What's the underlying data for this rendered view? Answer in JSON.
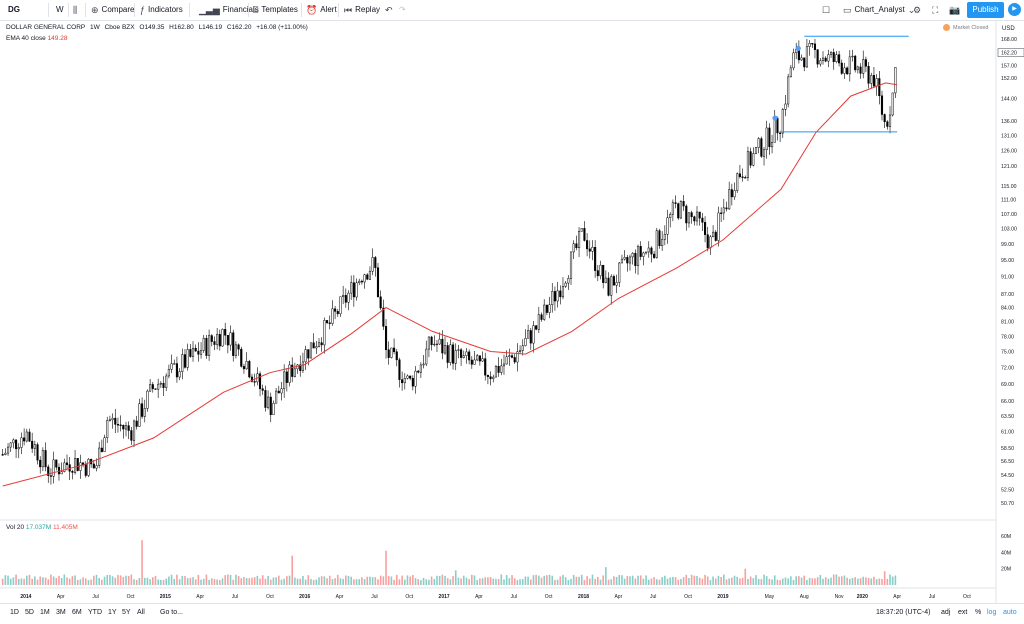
{
  "toolbar": {
    "symbol": "DG",
    "interval": "W",
    "compare": "Compare",
    "indicators": "Indicators",
    "financials": "Financials",
    "templates": "Templates",
    "alert": "Alert",
    "replay": "Replay",
    "layout_name": "Chart_Analyst",
    "publish": "Publish"
  },
  "legend": {
    "name": "DOLLAR GENERAL CORP",
    "interval": "1W",
    "exchange": "Cboe BZX",
    "open": "O149.35",
    "high": "H162.80",
    "low": "L146.19",
    "close": "C162.20",
    "change": "+16.08 (+11.00%)",
    "ema_label": "EMA 40 close",
    "ema_value": "149.28",
    "market_status": "Market Closed"
  },
  "volume": {
    "label": "Vol 20",
    "v1": "17.037M",
    "v2": "11.405M"
  },
  "bottom": {
    "ranges": [
      "1D",
      "5D",
      "1M",
      "3M",
      "6M",
      "YTD",
      "1Y",
      "5Y",
      "All"
    ],
    "goto": "Go to...",
    "time": "18:37:20 (UTC-4)",
    "adj": "adj",
    "ext": "ext",
    "pct": "%",
    "log": "log",
    "auto": "auto"
  },
  "colors": {
    "up": "#ffffff",
    "down": "#000000",
    "wick": "#000000",
    "ema": "#e53935",
    "lines": "#2196f3",
    "vol_up": "#26a69a",
    "vol_down": "#ef5350",
    "accent": "#2196f3"
  },
  "chart_data": {
    "type": "candlestick",
    "title": "DOLLAR GENERAL CORP · 1W · Cboe BZX",
    "scale": "log",
    "y_axis_label": "USD",
    "y_ticks": [
      168.0,
      162.2,
      157.0,
      152.0,
      144.0,
      136.0,
      131.0,
      126.0,
      121.0,
      115.0,
      111.0,
      107.0,
      103.0,
      99.0,
      95.0,
      91.0,
      87.0,
      84.0,
      81.0,
      78.0,
      75.0,
      72.0,
      69.0,
      66.0,
      63.5,
      61.0,
      58.5,
      56.5,
      54.5,
      52.5,
      50.7
    ],
    "y_ticks_display": [
      "168.00",
      "162.20",
      "157.00",
      "152.00",
      "144.00",
      "136.00",
      "131.00",
      "126.00",
      "121.00",
      "115.00",
      "111.00",
      "107.00",
      "103.00",
      "99.00",
      "95.00",
      "91.00",
      "87.00",
      "84.00",
      "81.00",
      "78.00",
      "75.00",
      "72.00",
      "69.00",
      "66.00",
      "63.50",
      "61.00",
      "58.50",
      "56.50",
      "54.50",
      "52.50",
      "50.70"
    ],
    "ylim": [
      48.8,
      176
    ],
    "x_ticks": [
      {
        "label": "2014",
        "date": "2014-01"
      },
      {
        "label": "Apr",
        "date": "2014-04"
      },
      {
        "label": "Jul",
        "date": "2014-07"
      },
      {
        "label": "Oct",
        "date": "2014-10"
      },
      {
        "label": "2015",
        "date": "2015-01"
      },
      {
        "label": "Apr",
        "date": "2015-04"
      },
      {
        "label": "Jul",
        "date": "2015-07"
      },
      {
        "label": "Oct",
        "date": "2015-10"
      },
      {
        "label": "2016",
        "date": "2016-01"
      },
      {
        "label": "Apr",
        "date": "2016-04"
      },
      {
        "label": "Jul",
        "date": "2016-07"
      },
      {
        "label": "Oct",
        "date": "2016-10"
      },
      {
        "label": "2017",
        "date": "2017-01"
      },
      {
        "label": "Apr",
        "date": "2017-04"
      },
      {
        "label": "Jul",
        "date": "2017-07"
      },
      {
        "label": "Oct",
        "date": "2017-10"
      },
      {
        "label": "2018",
        "date": "2018-01"
      },
      {
        "label": "Apr",
        "date": "2018-04"
      },
      {
        "label": "Jul",
        "date": "2018-07"
      },
      {
        "label": "Oct",
        "date": "2018-10"
      },
      {
        "label": "2019",
        "date": "2019-01"
      },
      {
        "label": "May",
        "date": "2019-05"
      },
      {
        "label": "Aug",
        "date": "2019-08"
      },
      {
        "label": "Nov",
        "date": "2019-11"
      },
      {
        "label": "2020",
        "date": "2020-01"
      },
      {
        "label": "Apr",
        "date": "2020-04"
      },
      {
        "label": "Jul",
        "date": "2020-07"
      },
      {
        "label": "Oct",
        "date": "2020-10"
      }
    ],
    "price_path": [
      {
        "date": "2013-11",
        "close": 57.5
      },
      {
        "date": "2014-01",
        "close": 61.0
      },
      {
        "date": "2014-03",
        "close": 55.0
      },
      {
        "date": "2014-05",
        "close": 56.5
      },
      {
        "date": "2014-07",
        "close": 55.5
      },
      {
        "date": "2014-08",
        "close": 63.0
      },
      {
        "date": "2014-10",
        "close": 61.0
      },
      {
        "date": "2014-12",
        "close": 68.5
      },
      {
        "date": "2015-03",
        "close": 73.5
      },
      {
        "date": "2015-06",
        "close": 79.0
      },
      {
        "date": "2015-08",
        "close": 73.0
      },
      {
        "date": "2015-10",
        "close": 65.0
      },
      {
        "date": "2015-12",
        "close": 72.0
      },
      {
        "date": "2016-03",
        "close": 80.0
      },
      {
        "date": "2016-06",
        "close": 92.0
      },
      {
        "date": "2016-07",
        "close": 94.0
      },
      {
        "date": "2016-08",
        "close": 75.0
      },
      {
        "date": "2016-10",
        "close": 69.0
      },
      {
        "date": "2016-12",
        "close": 77.0
      },
      {
        "date": "2017-02",
        "close": 74.0
      },
      {
        "date": "2017-05",
        "close": 71.0
      },
      {
        "date": "2017-07",
        "close": 74.0
      },
      {
        "date": "2017-09",
        "close": 80.0
      },
      {
        "date": "2017-11",
        "close": 89.0
      },
      {
        "date": "2018-01",
        "close": 102.0
      },
      {
        "date": "2018-03",
        "close": 88.0
      },
      {
        "date": "2018-05",
        "close": 95.0
      },
      {
        "date": "2018-07",
        "close": 98.0
      },
      {
        "date": "2018-09",
        "close": 109.0
      },
      {
        "date": "2018-11",
        "close": 104.0
      },
      {
        "date": "2018-12",
        "close": 99.0
      },
      {
        "date": "2019-02",
        "close": 117.0
      },
      {
        "date": "2019-04",
        "close": 126.0
      },
      {
        "date": "2019-06",
        "close": 136.0
      },
      {
        "date": "2019-07",
        "close": 160.0
      },
      {
        "date": "2019-09",
        "close": 162.0
      },
      {
        "date": "2019-11",
        "close": 158.0
      },
      {
        "date": "2020-01",
        "close": 155.0
      },
      {
        "date": "2020-02",
        "close": 152.0
      },
      {
        "date": "2020-03",
        "close": 134.0
      },
      {
        "date": "2020-03-20",
        "close": 146.0
      },
      {
        "date": "2020-04",
        "close": 162.2
      }
    ],
    "ema40_path": [
      {
        "date": "2013-11",
        "value": 53.0
      },
      {
        "date": "2014-06",
        "value": 56.0
      },
      {
        "date": "2014-12",
        "value": 60.0
      },
      {
        "date": "2015-06",
        "value": 67.5
      },
      {
        "date": "2015-10",
        "value": 71.0
      },
      {
        "date": "2016-01",
        "value": 72.5
      },
      {
        "date": "2016-05",
        "value": 78.5
      },
      {
        "date": "2016-08",
        "value": 84.0
      },
      {
        "date": "2016-12",
        "value": 79.0
      },
      {
        "date": "2017-05",
        "value": 75.0
      },
      {
        "date": "2017-08",
        "value": 74.5
      },
      {
        "date": "2017-12",
        "value": 79.0
      },
      {
        "date": "2018-04",
        "value": 86.0
      },
      {
        "date": "2018-09",
        "value": 93.0
      },
      {
        "date": "2019-01",
        "value": 100.0
      },
      {
        "date": "2019-06",
        "value": 114.0
      },
      {
        "date": "2019-09",
        "value": 132.0
      },
      {
        "date": "2019-12",
        "value": 145.0
      },
      {
        "date": "2020-03",
        "value": 150.0
      },
      {
        "date": "2020-04",
        "value": 149.28
      }
    ],
    "horizontal_lines": [
      {
        "value": 169.2,
        "from": "2019-08",
        "to": "2020-05"
      },
      {
        "value": 132.2,
        "from": "2019-06",
        "to": "2020-04"
      }
    ],
    "volume_axis": [
      "60M",
      "40M",
      "20M"
    ],
    "volume_ymax": 70,
    "volume_spikes": [
      {
        "date": "2014-11",
        "value": 55
      },
      {
        "date": "2015-12",
        "value": 36
      },
      {
        "date": "2016-08",
        "value": 42
      },
      {
        "date": "2017-02",
        "value": 18
      },
      {
        "date": "2018-03",
        "value": 22
      },
      {
        "date": "2019-03",
        "value": 20
      },
      {
        "date": "2020-03",
        "value": 17
      }
    ]
  }
}
